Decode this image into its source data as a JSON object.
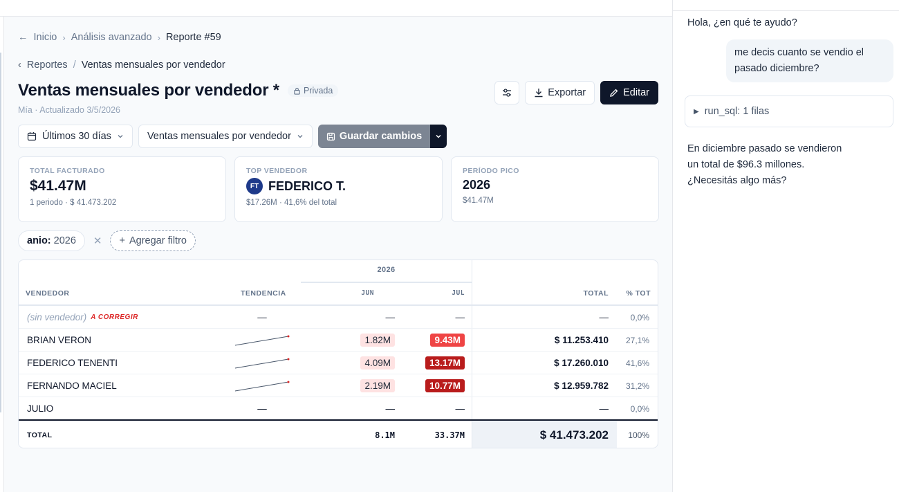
{
  "breadcrumb": {
    "items": [
      "Inicio",
      "Análisis avanzado",
      "Reporte #59"
    ]
  },
  "sub_breadcrumb": {
    "back": "Reportes",
    "current": "Ventas mensuales por vendedor"
  },
  "report": {
    "title": "Ventas mensuales por vendedor *",
    "privacy": "Privada",
    "meta": "Mía · Actualizado 3/5/2026"
  },
  "actions": {
    "export": "Exportar",
    "edit": "Editar"
  },
  "toolbar": {
    "date_range": "Últimos 30 días",
    "view": "Ventas mensuales por vendedor",
    "save": "Guardar cambios"
  },
  "kpis": [
    {
      "label": "TOTAL FACTURADO",
      "value": "$41.47M",
      "hint": "1 periodo · $ 41.473.202"
    },
    {
      "label": "TOP VENDEDOR",
      "initials": "FT",
      "value": "FEDERICO T.",
      "hint": "$17.26M · 41,6% del total"
    },
    {
      "label": "PERÍODO PICO",
      "value": "2026",
      "hint": "$41.47M"
    }
  ],
  "filters": {
    "chip_key": "anio:",
    "chip_value": "2026",
    "add": "Agregar filtro"
  },
  "table": {
    "year_header": "2026",
    "columns": [
      "VENDEDOR",
      "TENDENCIA",
      "JUN",
      "JUL",
      "TOTAL",
      "% TOT"
    ],
    "rows": [
      {
        "name": "(sin vendedor)",
        "tag": "A CORREGIR",
        "jun": "—",
        "jul": "—",
        "total": "—",
        "pct": "0,0%"
      },
      {
        "name": "BRIAN VERON",
        "jun": "1.82M",
        "jul": "9.43M",
        "total": "$ 11.253.410",
        "pct": "27,1%"
      },
      {
        "name": "FEDERICO TENENTI",
        "jun": "4.09M",
        "jul": "13.17M",
        "total": "$ 17.260.010",
        "pct": "41,6%"
      },
      {
        "name": "FERNANDO MACIEL",
        "jun": "2.19M",
        "jul": "10.77M",
        "total": "$ 12.959.782",
        "pct": "31,2%"
      },
      {
        "name": "JULIO",
        "jun": "—",
        "jul": "—",
        "total": "—",
        "pct": "0,0%"
      }
    ],
    "totals": {
      "label": "TOTAL",
      "jun": "8.1M",
      "jul": "33.37M",
      "total": "$ 41.473.202",
      "pct": "100%"
    }
  },
  "chat": {
    "greeting": "Hola, ¿en qué te ayudo?",
    "user_line1": "me decis cuanto se vendio el",
    "user_line2": "pasado diciembre?",
    "tool": "run_sql: 1 filas",
    "answer_line1": "En diciembre pasado se vendieron",
    "answer_line2": "un total de $96.3 millones.",
    "answer_line3": "¿Necesitás algo más?"
  }
}
